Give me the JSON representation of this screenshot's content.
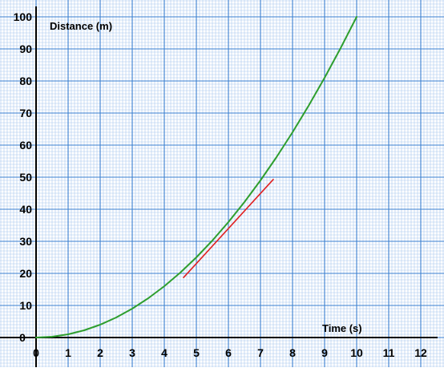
{
  "chart_data": {
    "type": "line",
    "xlabel": "Time (s)",
    "ylabel": "Distance (m)",
    "xlim": [
      0,
      12
    ],
    "ylim": [
      0,
      100
    ],
    "x_ticks": [
      0,
      1,
      2,
      3,
      4,
      5,
      6,
      7,
      8,
      9,
      10,
      11,
      12
    ],
    "y_ticks": [
      0,
      10,
      20,
      30,
      40,
      50,
      60,
      70,
      80,
      90,
      100
    ],
    "grid": true,
    "series": [
      {
        "color": "#2e9e2e",
        "x": [
          0,
          0.5,
          1,
          1.5,
          2,
          2.5,
          3,
          3.5,
          4,
          4.5,
          5,
          5.5,
          6,
          6.5,
          7,
          7.5,
          8,
          8.5,
          9,
          9.5,
          10
        ],
        "y": [
          0,
          0.25,
          1,
          2.25,
          4,
          6.25,
          9,
          12.25,
          16,
          20.25,
          25,
          30.25,
          36,
          42.25,
          49,
          56.25,
          64,
          72.25,
          81,
          90.25,
          100
        ]
      },
      {
        "color": "#e02020",
        "x": [
          4.6,
          7.4
        ],
        "y": [
          18.7,
          49.3
        ]
      }
    ]
  }
}
